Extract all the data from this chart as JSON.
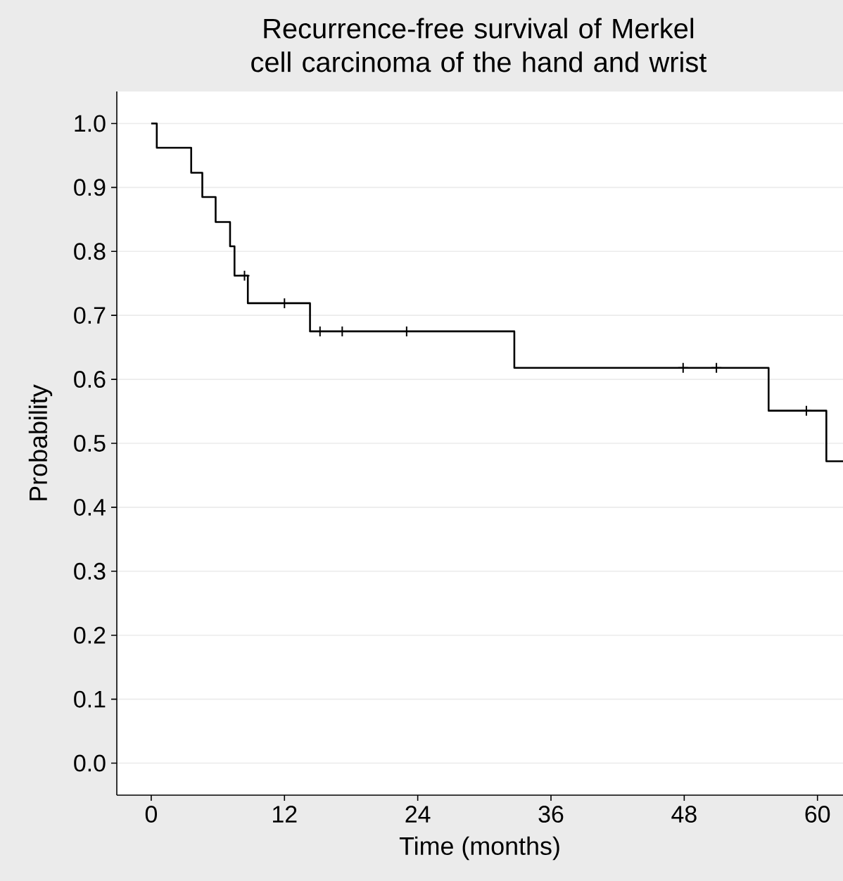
{
  "chart_data": {
    "type": "step",
    "title": "Recurrence-free survival of Merkel cell carcinoma of the hand and wrist",
    "xlabel": "Time (months)",
    "ylabel": "Probability",
    "series": [
      {
        "type": "step",
        "color": "#000000",
        "marker": "none",
        "x": [
          0,
          0.5,
          3.6,
          4.6,
          5.8,
          7.1,
          7.5,
          8.7,
          14.3,
          32.7,
          55.6,
          60.8,
          62.3
        ],
        "values": [
          1.0,
          0.962,
          0.923,
          0.885,
          0.846,
          0.808,
          0.762,
          0.719,
          0.675,
          0.618,
          0.551,
          0.472,
          0.472
        ]
      },
      {
        "type": "scatter",
        "color": "#000000",
        "marker": "cross",
        "x": [
          8.4,
          12.0,
          15.2,
          17.2,
          23.0,
          47.9,
          50.9,
          59.0
        ],
        "values": [
          0.762,
          0.719,
          0.675,
          0.675,
          0.675,
          0.618,
          0.618,
          0.551
        ]
      }
    ],
    "xlim": [
      -3.1,
      62.3
    ],
    "ylim": [
      -0.05,
      1.05
    ],
    "xticks": [
      0,
      12,
      24,
      36,
      48,
      60
    ],
    "yticks": [
      {
        "value": 0,
        "label": "0.0"
      },
      {
        "value": 0.1,
        "label": "0.1"
      },
      {
        "value": 0.2,
        "label": "0.2"
      },
      {
        "value": 0.3,
        "label": "0.3"
      },
      {
        "value": 0.4,
        "label": "0.4"
      },
      {
        "value": 0.5,
        "label": "0.5"
      },
      {
        "value": 0.6,
        "label": "0.6"
      },
      {
        "value": 0.7,
        "label": "0.7"
      },
      {
        "value": 0.8,
        "label": "0.8"
      },
      {
        "value": 0.9,
        "label": "0.9"
      },
      {
        "value": 1,
        "label": "1.0"
      }
    ],
    "grid": "y"
  }
}
